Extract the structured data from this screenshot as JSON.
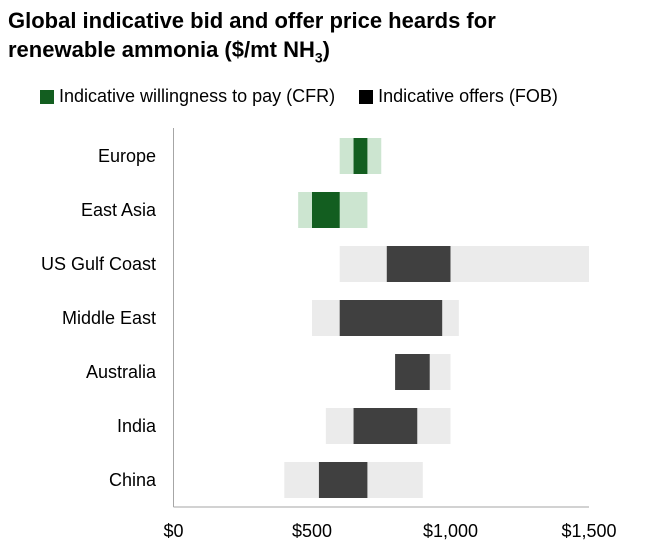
{
  "chart_data": {
    "type": "bar",
    "title_line1": "Global indicative bid and offer price heards for",
    "title_line2_pre": "renewable ammonia ($/mt NH",
    "title_sub": "3",
    "title_line2_post": ")",
    "legend": [
      {
        "label": "Indicative willingness to pay (CFR)",
        "color": "#135e20"
      },
      {
        "label": "Indicative offers (FOB)",
        "color": "#404040"
      }
    ],
    "xlim": [
      0,
      1500
    ],
    "xticks": [
      0,
      500,
      1000,
      1500
    ],
    "xtick_labels": [
      "$0",
      "$500",
      "$1,000",
      "$1,500"
    ],
    "categories": [
      "Europe",
      "East Asia",
      "US Gulf Coast",
      "Middle East",
      "Australia",
      "India",
      "China"
    ],
    "series_type": [
      "bid",
      "bid",
      "offer",
      "offer",
      "offer",
      "offer",
      "offer"
    ],
    "range_low": [
      600,
      450,
      600,
      500,
      800,
      550,
      400
    ],
    "core_low": [
      650,
      500,
      770,
      600,
      800,
      650,
      525
    ],
    "core_high": [
      700,
      600,
      1000,
      970,
      925,
      880,
      700
    ],
    "range_high": [
      750,
      700,
      1500,
      1030,
      1000,
      1000,
      900
    ],
    "colors": {
      "bid_core": "#135e20",
      "bid_range": "#cce5d0",
      "offer_core": "#404040",
      "offer_range": "#ebebeb",
      "axis": "#a6a6a6"
    }
  }
}
